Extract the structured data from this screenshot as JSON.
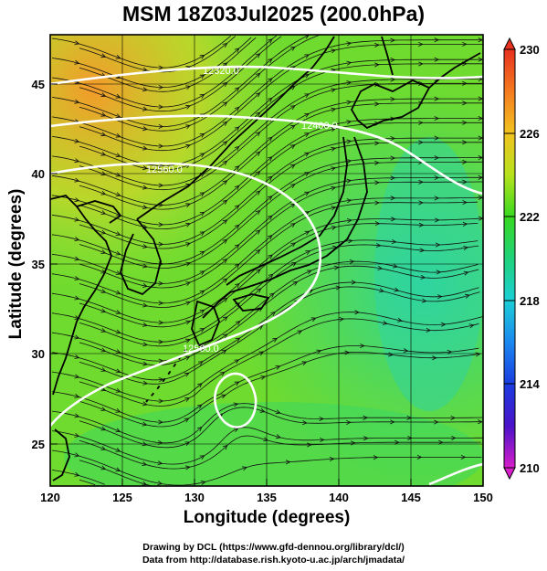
{
  "title": "MSM 18Z03Jul2025 (200.0hPa)",
  "xlabel": "Longitude (degrees)",
  "ylabel": "Latitude  (degrees)",
  "credit_line1": "Drawing by DCL (https://www.gfd-dennou.org/library/dcl/)",
  "credit_line2": "Data from http://database.rish.kyoto-u.ac.jp/arch/jmadata/",
  "chart_data": {
    "type": "heatmap",
    "xlim": [
      120,
      150
    ],
    "ylim": [
      22.5,
      47.5
    ],
    "x_ticks": [
      "120",
      "125",
      "130",
      "135",
      "140",
      "145",
      "150"
    ],
    "y_ticks": [
      "25",
      "30",
      "35",
      "40",
      "45"
    ],
    "grid": true,
    "colorbar": {
      "min": 210,
      "max": 230,
      "tick_labels": [
        "230",
        "226",
        "222",
        "218",
        "214",
        "210"
      ],
      "placement": "right"
    },
    "contour_labels": [
      "12320.0",
      "12400.0",
      "12560.0",
      "12560.0"
    ],
    "overlay": "wind streamlines"
  }
}
